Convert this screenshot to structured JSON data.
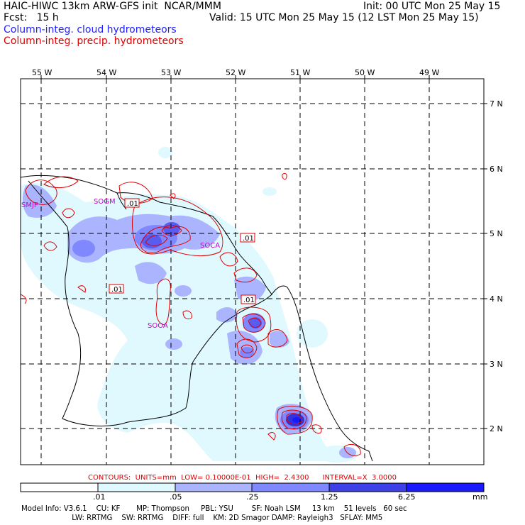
{
  "header": {
    "title_left": "HAIC-HIWC 13km ARW-GFS init  NCAR/MMM",
    "init": "Init: 00 UTC Mon 25 May 15",
    "fcst": "Fcst:   15 h",
    "valid": "Valid: 15 UTC Mon 25 May 15 (12 LST Mon 25 May 15)",
    "field_cloud": "Column-integ. cloud hydrometeors",
    "field_precip": "Column-integ. precip. hydrometeors"
  },
  "colors": {
    "cloud_label": "#2020ff",
    "precip_label": "#e00000",
    "shade_1": "#dff9ff",
    "shade_2": "#aab4ff",
    "shade_3": "#7f88ff",
    "shade_4": "#5a5cf0",
    "shade_5": "#3333dd",
    "shade_6": "#1a1aff",
    "contour": "#e00000",
    "station": "#cc00cc"
  },
  "map": {
    "lon_labels": [
      "55 W",
      "54 W",
      "53 W",
      "52 W",
      "51 W",
      "50 W",
      "49 W"
    ],
    "lat_labels": [
      "7 N",
      "6 N",
      "5 N",
      "4 N",
      "3 N",
      "2 N"
    ],
    "stations": [
      "SMJP",
      "SOGM",
      "SOCA",
      "SOOA"
    ],
    "contour_labels": [
      ".01",
      ".01",
      ".01",
      ".01"
    ]
  },
  "contour_info": "CONTOURS:  UNITS=mm  LOW= 0.10000E-01  HIGH=  2.4300      INTERVAL=X  3.0000",
  "colorbar": {
    "ticks": [
      ".01",
      ".05",
      ".25",
      "1.25",
      "6.25"
    ],
    "unit": "mm"
  },
  "model_info": {
    "line1": "Model Info: V3.6.1    CU: KF       MP: Thompson     PBL: YSU        SF: Noah LSM     13 km    51 levels   60 sec",
    "line2": "                      LW: RRTMG    SW: RRTMG    DIFF: full    KM: 2D Smagor DAMP: Rayleigh3   SFLAY: MM5"
  }
}
